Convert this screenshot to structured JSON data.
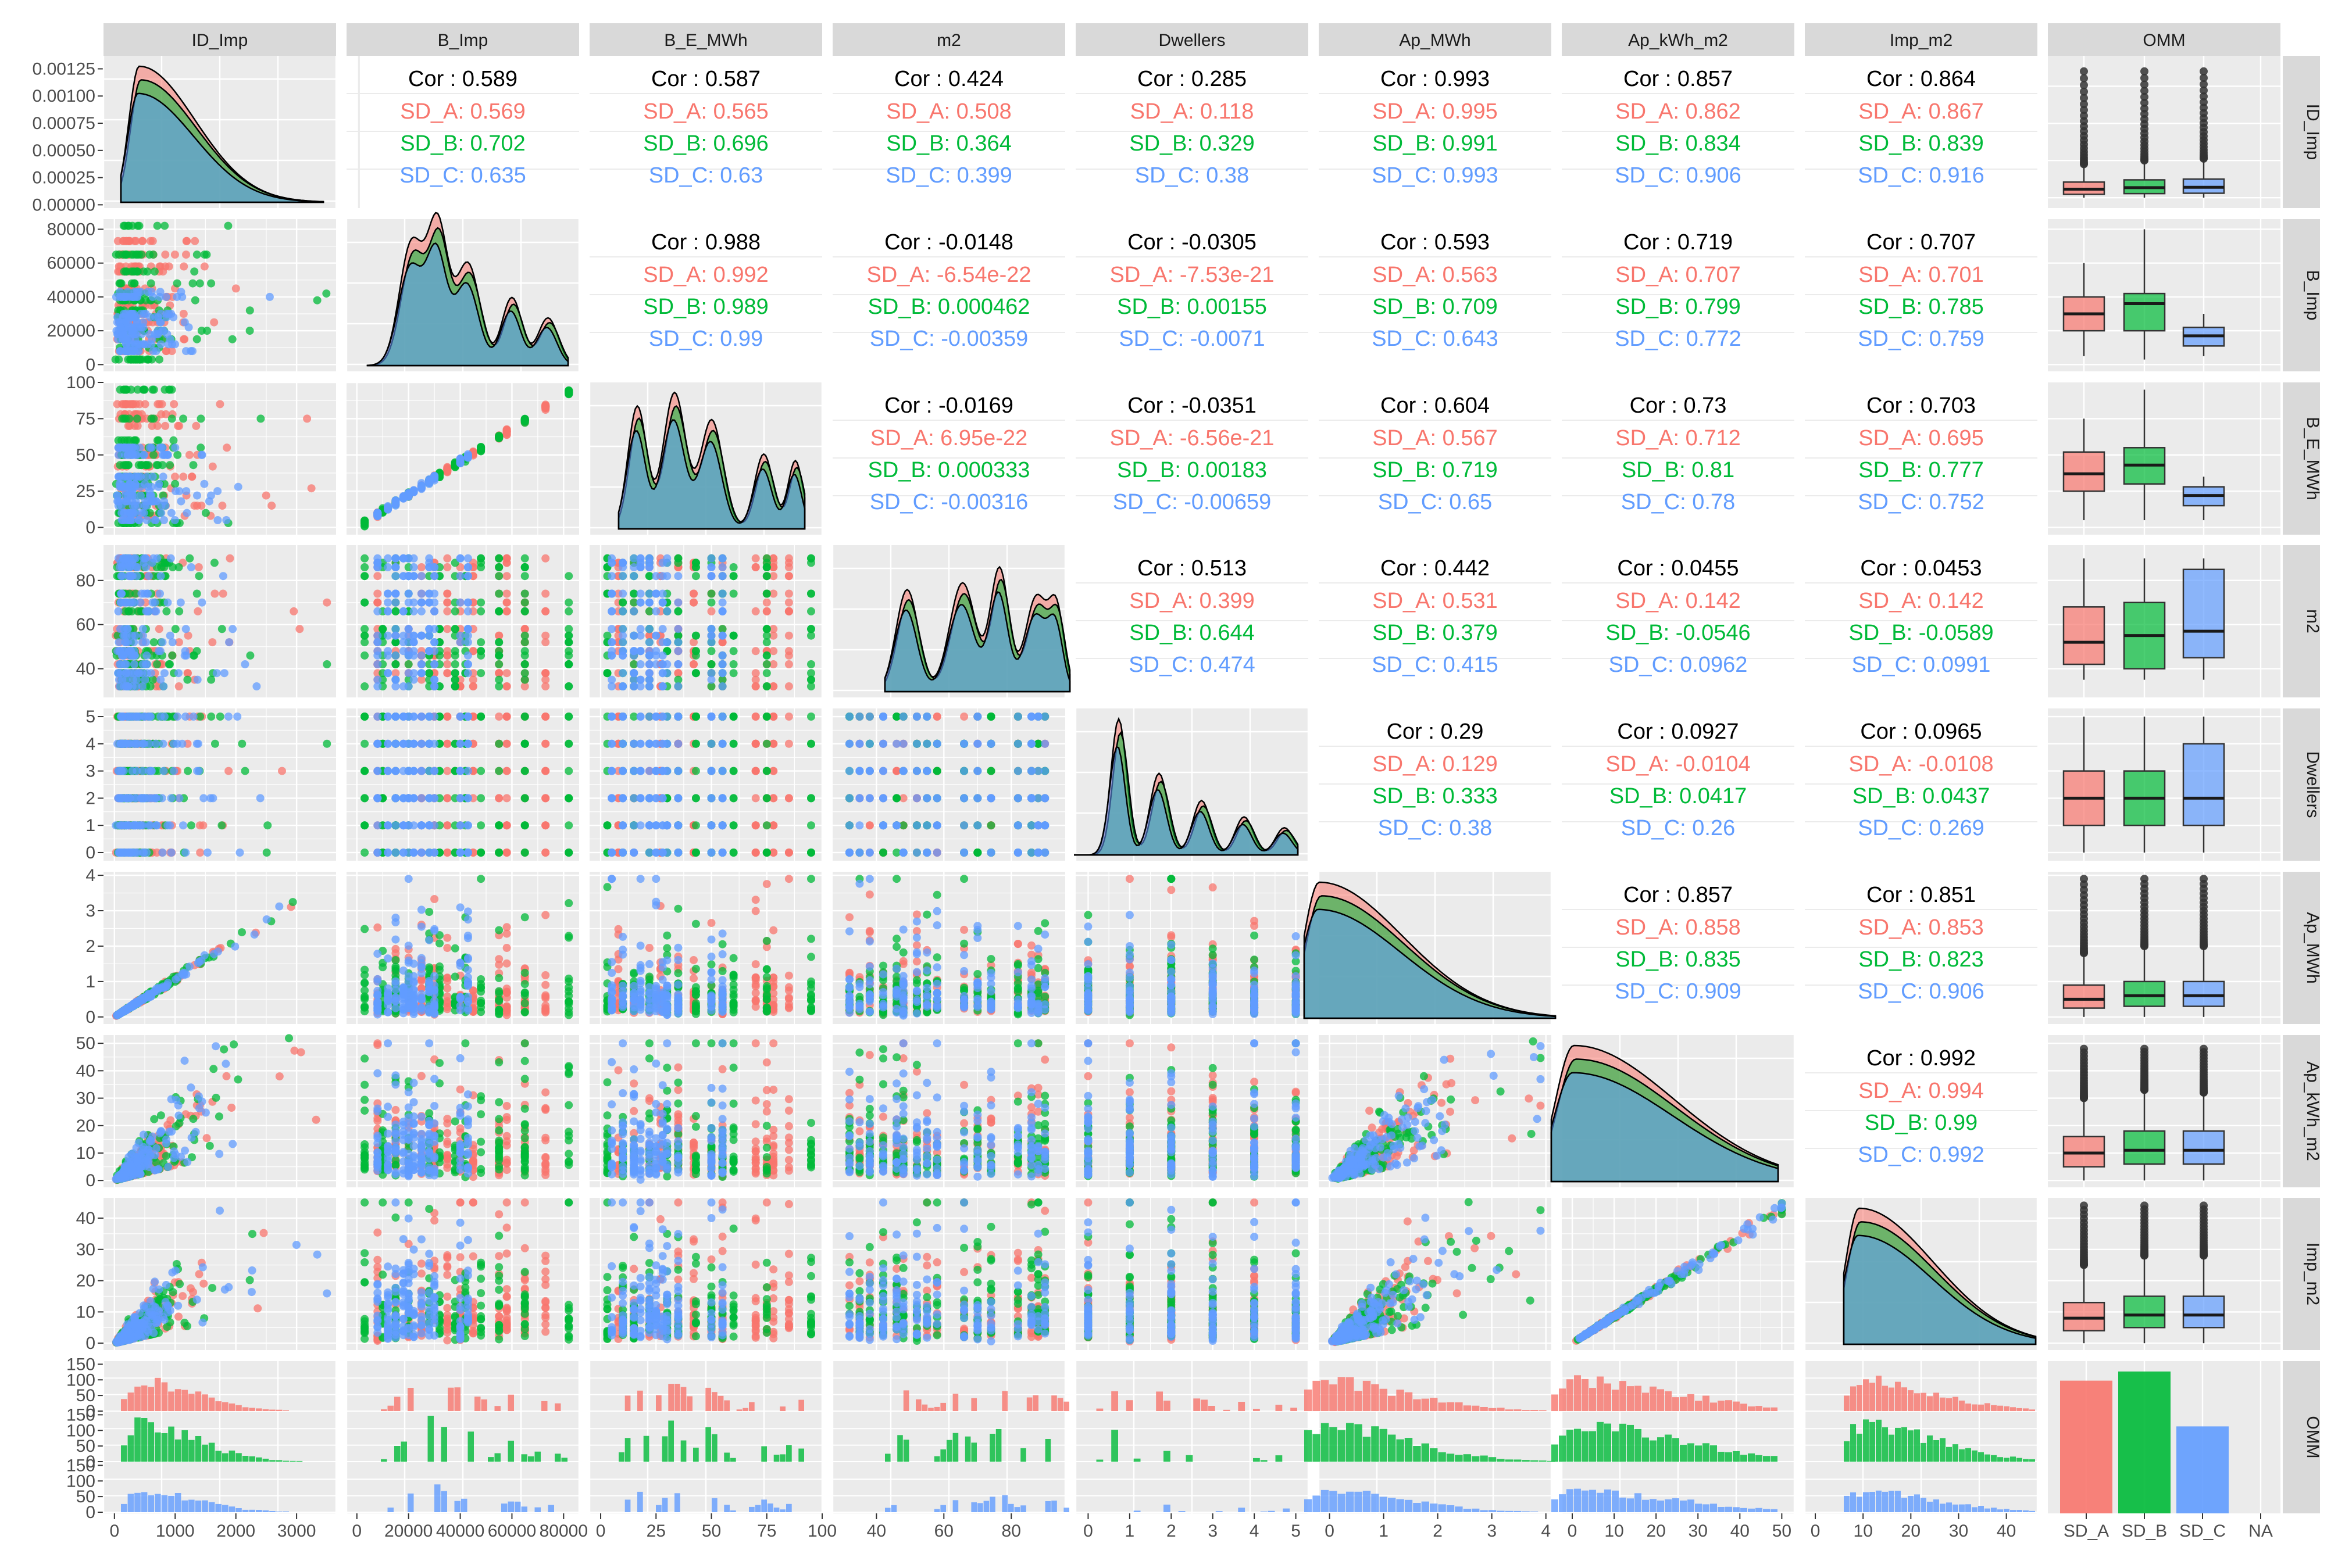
{
  "chart_data": {
    "type": "scatter-matrix",
    "title": "",
    "variables": [
      "ID_Imp",
      "B_Imp",
      "B_E_MWh",
      "m2",
      "Dwellers",
      "Ap_MWh",
      "Ap_kWh_m2",
      "Imp_m2",
      "OMM"
    ],
    "groups": [
      "SD_A",
      "SD_B",
      "SD_C"
    ],
    "group_colors": {
      "SD_A": "#F8766D",
      "SD_B": "#00BA38",
      "SD_C": "#619CFF"
    },
    "x_tick_labels": {
      "ID_Imp": [
        "0",
        "1000",
        "2000",
        "3000"
      ],
      "B_Imp": [
        "0",
        "20000",
        "40000",
        "60000",
        "80000"
      ],
      "B_E_MWh": [
        "0",
        "25",
        "50",
        "75",
        "100"
      ],
      "m2": [
        "40",
        "60",
        "80"
      ],
      "Dwellers": [
        "0",
        "1",
        "2",
        "3",
        "4",
        "5"
      ],
      "Ap_MWh": [
        "0",
        "1",
        "2",
        "3",
        "4"
      ],
      "Ap_kWh_m2": [
        "0",
        "10",
        "20",
        "30",
        "40",
        "50"
      ],
      "Imp_m2": [
        "0",
        "10",
        "20",
        "30",
        "40"
      ],
      "OMM": [
        "SD_A",
        "SD_B",
        "SD_C",
        "NA"
      ]
    },
    "y_tick_labels": {
      "ID_Imp": [
        "0.00000",
        "0.00025",
        "0.00050",
        "0.00075",
        "0.00100",
        "0.00125"
      ],
      "B_Imp": [
        "0",
        "20000",
        "40000",
        "60000",
        "80000"
      ],
      "B_E_MWh": [
        "0",
        "25",
        "50",
        "75",
        "100"
      ],
      "m2": [
        "40",
        "60",
        "80"
      ],
      "Dwellers": [
        "0",
        "1",
        "2",
        "3",
        "4",
        "5"
      ],
      "Ap_MWh": [
        "0",
        "1",
        "2",
        "3",
        "4"
      ],
      "Ap_kWh_m2": [
        "0",
        "10",
        "20",
        "30",
        "40",
        "50"
      ],
      "Imp_m2": [
        "0",
        "10",
        "20",
        "30",
        "40"
      ],
      "OMM": [
        "0",
        "50",
        "100",
        "150",
        "0",
        "50",
        "100",
        "150",
        "0",
        "50",
        "100",
        "150"
      ]
    },
    "correlations": [
      {
        "row": "ID_Imp",
        "col": "B_Imp",
        "cor": "Cor : 0.589",
        "SD_A": "SD_A: 0.569",
        "SD_B": "SD_B: 0.702",
        "SD_C": "SD_C: 0.635"
      },
      {
        "row": "ID_Imp",
        "col": "B_E_MWh",
        "cor": "Cor : 0.587",
        "SD_A": "SD_A: 0.565",
        "SD_B": "SD_B: 0.696",
        "SD_C": "SD_C: 0.63"
      },
      {
        "row": "ID_Imp",
        "col": "m2",
        "cor": "Cor : 0.424",
        "SD_A": "SD_A: 0.508",
        "SD_B": "SD_B: 0.364",
        "SD_C": "SD_C: 0.399"
      },
      {
        "row": "ID_Imp",
        "col": "Dwellers",
        "cor": "Cor : 0.285",
        "SD_A": "SD_A: 0.118",
        "SD_B": "SD_B: 0.329",
        "SD_C": "SD_C: 0.38"
      },
      {
        "row": "ID_Imp",
        "col": "Ap_MWh",
        "cor": "Cor : 0.993",
        "SD_A": "SD_A: 0.995",
        "SD_B": "SD_B: 0.991",
        "SD_C": "SD_C: 0.993"
      },
      {
        "row": "ID_Imp",
        "col": "Ap_kWh_m2",
        "cor": "Cor : 0.857",
        "SD_A": "SD_A: 0.862",
        "SD_B": "SD_B: 0.834",
        "SD_C": "SD_C: 0.906"
      },
      {
        "row": "ID_Imp",
        "col": "Imp_m2",
        "cor": "Cor : 0.864",
        "SD_A": "SD_A: 0.867",
        "SD_B": "SD_B: 0.839",
        "SD_C": "SD_C: 0.916"
      },
      {
        "row": "B_Imp",
        "col": "B_E_MWh",
        "cor": "Cor : 0.988",
        "SD_A": "SD_A: 0.992",
        "SD_B": "SD_B: 0.989",
        "SD_C": "SD_C: 0.99"
      },
      {
        "row": "B_Imp",
        "col": "m2",
        "cor": "Cor : -0.0148",
        "SD_A": "SD_A: -6.54e-22",
        "SD_B": "SD_B: 0.000462",
        "SD_C": "SD_C: -0.00359"
      },
      {
        "row": "B_Imp",
        "col": "Dwellers",
        "cor": "Cor : -0.0305",
        "SD_A": "SD_A: -7.53e-21",
        "SD_B": "SD_B: 0.00155",
        "SD_C": "SD_C: -0.0071"
      },
      {
        "row": "B_Imp",
        "col": "Ap_MWh",
        "cor": "Cor : 0.593",
        "SD_A": "SD_A: 0.563",
        "SD_B": "SD_B: 0.709",
        "SD_C": "SD_C: 0.643"
      },
      {
        "row": "B_Imp",
        "col": "Ap_kWh_m2",
        "cor": "Cor : 0.719",
        "SD_A": "SD_A: 0.707",
        "SD_B": "SD_B: 0.799",
        "SD_C": "SD_C: 0.772"
      },
      {
        "row": "B_Imp",
        "col": "Imp_m2",
        "cor": "Cor : 0.707",
        "SD_A": "SD_A: 0.701",
        "SD_B": "SD_B: 0.785",
        "SD_C": "SD_C: 0.759"
      },
      {
        "row": "B_E_MWh",
        "col": "m2",
        "cor": "Cor : -0.0169",
        "SD_A": "SD_A: 6.95e-22",
        "SD_B": "SD_B: 0.000333",
        "SD_C": "SD_C: -0.00316"
      },
      {
        "row": "B_E_MWh",
        "col": "Dwellers",
        "cor": "Cor : -0.0351",
        "SD_A": "SD_A: -6.56e-21",
        "SD_B": "SD_B: 0.00183",
        "SD_C": "SD_C: -0.00659"
      },
      {
        "row": "B_E_MWh",
        "col": "Ap_MWh",
        "cor": "Cor : 0.604",
        "SD_A": "SD_A: 0.567",
        "SD_B": "SD_B: 0.719",
        "SD_C": "SD_C: 0.65"
      },
      {
        "row": "B_E_MWh",
        "col": "Ap_kWh_m2",
        "cor": "Cor : 0.73",
        "SD_A": "SD_A: 0.712",
        "SD_B": "SD_B: 0.81",
        "SD_C": "SD_C: 0.78"
      },
      {
        "row": "B_E_MWh",
        "col": "Imp_m2",
        "cor": "Cor : 0.703",
        "SD_A": "SD_A: 0.695",
        "SD_B": "SD_B: 0.777",
        "SD_C": "SD_C: 0.752"
      },
      {
        "row": "m2",
        "col": "Dwellers",
        "cor": "Cor : 0.513",
        "SD_A": "SD_A: 0.399",
        "SD_B": "SD_B: 0.644",
        "SD_C": "SD_C: 0.474"
      },
      {
        "row": "m2",
        "col": "Ap_MWh",
        "cor": "Cor : 0.442",
        "SD_A": "SD_A: 0.531",
        "SD_B": "SD_B: 0.379",
        "SD_C": "SD_C: 0.415"
      },
      {
        "row": "m2",
        "col": "Ap_kWh_m2",
        "cor": "Cor : 0.0455",
        "SD_A": "SD_A: 0.142",
        "SD_B": "SD_B: -0.0546",
        "SD_C": "SD_C: 0.0962"
      },
      {
        "row": "m2",
        "col": "Imp_m2",
        "cor": "Cor : 0.0453",
        "SD_A": "SD_A: 0.142",
        "SD_B": "SD_B: -0.0589",
        "SD_C": "SD_C: 0.0991"
      },
      {
        "row": "Dwellers",
        "col": "Ap_MWh",
        "cor": "Cor : 0.29",
        "SD_A": "SD_A: 0.129",
        "SD_B": "SD_B: 0.333",
        "SD_C": "SD_C: 0.38"
      },
      {
        "row": "Dwellers",
        "col": "Ap_kWh_m2",
        "cor": "Cor : 0.0927",
        "SD_A": "SD_A: -0.0104",
        "SD_B": "SD_B: 0.0417",
        "SD_C": "SD_C: 0.26"
      },
      {
        "row": "Dwellers",
        "col": "Imp_m2",
        "cor": "Cor : 0.0965",
        "SD_A": "SD_A: -0.0108",
        "SD_B": "SD_B: 0.0437",
        "SD_C": "SD_C: 0.269"
      },
      {
        "row": "Ap_MWh",
        "col": "Ap_kWh_m2",
        "cor": "Cor : 0.857",
        "SD_A": "SD_A: 0.858",
        "SD_B": "SD_B: 0.835",
        "SD_C": "SD_C: 0.909"
      },
      {
        "row": "Ap_MWh",
        "col": "Imp_m2",
        "cor": "Cor : 0.851",
        "SD_A": "SD_A: 0.853",
        "SD_B": "SD_B: 0.823",
        "SD_C": "SD_C: 0.906"
      },
      {
        "row": "Ap_kWh_m2",
        "col": "Imp_m2",
        "cor": "Cor : 0.992",
        "SD_A": "SD_A: 0.994",
        "SD_B": "SD_B: 0.99",
        "SD_C": "SD_C: 0.992"
      }
    ],
    "omm_counts": {
      "SD_A": 145,
      "SD_B": 155,
      "SD_C": 95,
      "NA": 0
    },
    "boxplots_estimated": {
      "ID_Imp": {
        "SD_A": [
          0,
          90,
          230,
          420,
          900
        ],
        "SD_B": [
          0,
          110,
          270,
          480,
          1000
        ],
        "SD_C": [
          0,
          120,
          280,
          500,
          1050
        ]
      },
      "B_Imp": {
        "SD_A": [
          5000,
          20000,
          30000,
          40000,
          60000
        ],
        "SD_B": [
          3000,
          20000,
          36000,
          42000,
          80000
        ],
        "SD_C": [
          5000,
          11000,
          17000,
          22000,
          30000
        ]
      },
      "B_E_MWh": {
        "SD_A": [
          5,
          25,
          37,
          52,
          75
        ],
        "SD_B": [
          5,
          30,
          43,
          55,
          95
        ],
        "SD_C": [
          5,
          15,
          22,
          28,
          35
        ]
      },
      "m2": {
        "SD_A": [
          35,
          42,
          52,
          68,
          90
        ],
        "SD_B": [
          35,
          40,
          55,
          70,
          90
        ],
        "SD_C": [
          35,
          45,
          57,
          85,
          90
        ]
      },
      "Dwellers": {
        "SD_A": [
          0,
          1,
          2,
          3,
          5
        ],
        "SD_B": [
          0,
          1,
          2,
          3,
          5
        ],
        "SD_C": [
          0,
          1,
          2,
          4,
          5
        ]
      },
      "Ap_MWh": {
        "SD_A": [
          0,
          0.25,
          0.5,
          0.9,
          1.8
        ],
        "SD_B": [
          0,
          0.3,
          0.6,
          1.0,
          2.0
        ],
        "SD_C": [
          0,
          0.3,
          0.6,
          1.0,
          2.0
        ]
      },
      "Ap_kWh_m2": {
        "SD_A": [
          0,
          5,
          10,
          16,
          30
        ],
        "SD_B": [
          0,
          6,
          11,
          18,
          33
        ],
        "SD_C": [
          0,
          6,
          11,
          18,
          32
        ]
      },
      "Imp_m2": {
        "SD_A": [
          0,
          4,
          8,
          13,
          25
        ],
        "SD_B": [
          0,
          5,
          9,
          15,
          28
        ],
        "SD_C": [
          0,
          5,
          9,
          15,
          28
        ]
      }
    }
  }
}
